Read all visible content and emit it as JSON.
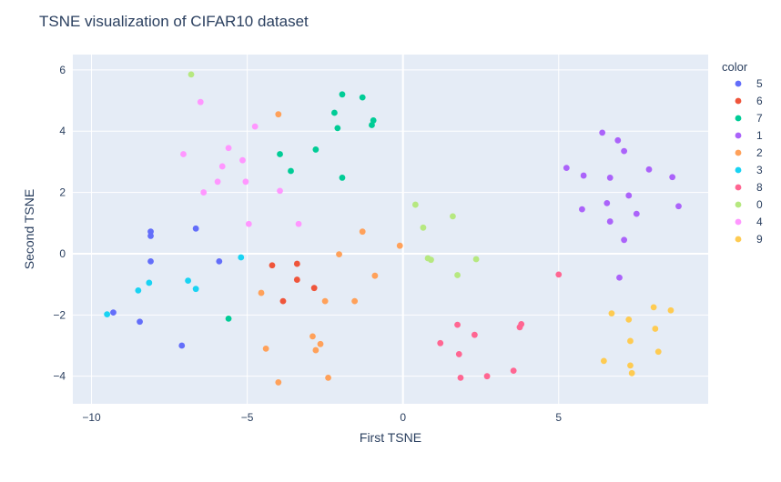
{
  "chart_data": {
    "type": "scatter",
    "title": "TSNE visualization of CIFAR10 dataset",
    "xlabel": "First TSNE",
    "ylabel": "Second TSNE",
    "xlim": [
      -10.6,
      9.8
    ],
    "ylim": [
      -4.9,
      6.5
    ],
    "xticks": [
      -10,
      -5,
      0,
      5
    ],
    "xtick_labels": [
      "−10",
      "−5",
      "0",
      "5"
    ],
    "yticks": [
      -4,
      -2,
      0,
      2,
      4,
      6
    ],
    "ytick_labels": [
      "−4",
      "−2",
      "0",
      "2",
      "4",
      "6"
    ],
    "grid": true,
    "legend_title": "color",
    "legend_position": "right",
    "series": [
      {
        "name": "5",
        "color": "#636efa",
        "points": [
          [
            -8.1,
            0.72
          ],
          [
            -8.1,
            0.58
          ],
          [
            -8.1,
            -0.25
          ],
          [
            -6.65,
            0.82
          ],
          [
            -5.9,
            -0.25
          ],
          [
            -9.3,
            -1.92
          ],
          [
            -8.45,
            -2.22
          ],
          [
            -7.1,
            -3.0
          ]
        ]
      },
      {
        "name": "6",
        "color": "#EF553B",
        "points": [
          [
            -4.2,
            -0.38
          ],
          [
            -3.4,
            -0.33
          ],
          [
            -3.4,
            -0.85
          ],
          [
            -3.85,
            -1.55
          ],
          [
            -2.85,
            -1.12
          ]
        ]
      },
      {
        "name": "7",
        "color": "#00cc96",
        "points": [
          [
            -5.6,
            -2.12
          ],
          [
            -3.95,
            3.25
          ],
          [
            -3.6,
            2.7
          ],
          [
            -2.8,
            3.4
          ],
          [
            -2.2,
            4.6
          ],
          [
            -2.1,
            4.1
          ],
          [
            -1.95,
            5.2
          ],
          [
            -1.95,
            2.48
          ],
          [
            -1.3,
            5.1
          ],
          [
            -1.0,
            4.2
          ],
          [
            -0.95,
            4.35
          ]
        ]
      },
      {
        "name": "1",
        "color": "#ab63fa",
        "points": [
          [
            5.25,
            2.8
          ],
          [
            5.8,
            2.55
          ],
          [
            6.4,
            3.95
          ],
          [
            6.9,
            3.7
          ],
          [
            7.1,
            3.35
          ],
          [
            6.65,
            2.48
          ],
          [
            7.9,
            2.75
          ],
          [
            8.65,
            2.5
          ],
          [
            8.85,
            1.55
          ],
          [
            7.25,
            1.9
          ],
          [
            6.55,
            1.65
          ],
          [
            5.75,
            1.45
          ],
          [
            6.65,
            1.05
          ],
          [
            7.5,
            1.3
          ],
          [
            7.1,
            0.45
          ],
          [
            6.95,
            -0.78
          ]
        ]
      },
      {
        "name": "2",
        "color": "#FFA15A",
        "points": [
          [
            -4.0,
            4.55
          ],
          [
            -4.55,
            -1.28
          ],
          [
            -4.4,
            -3.1
          ],
          [
            -4.0,
            -4.2
          ],
          [
            -2.9,
            -2.7
          ],
          [
            -2.8,
            -3.15
          ],
          [
            -2.65,
            -2.95
          ],
          [
            -2.5,
            -1.55
          ],
          [
            -2.4,
            -4.05
          ],
          [
            -2.05,
            -0.02
          ],
          [
            -1.55,
            -1.55
          ],
          [
            -1.3,
            0.72
          ],
          [
            -0.9,
            -0.72
          ],
          [
            -0.1,
            0.26
          ]
        ]
      },
      {
        "name": "3",
        "color": "#19d3f3",
        "points": [
          [
            -9.5,
            -1.98
          ],
          [
            -8.5,
            -1.2
          ],
          [
            -8.15,
            -0.95
          ],
          [
            -6.9,
            -0.88
          ],
          [
            -6.65,
            -1.15
          ],
          [
            -5.2,
            -0.12
          ]
        ]
      },
      {
        "name": "8",
        "color": "#FF6692",
        "points": [
          [
            5.0,
            -0.68
          ],
          [
            1.2,
            -2.92
          ],
          [
            1.75,
            -2.32
          ],
          [
            1.8,
            -3.28
          ],
          [
            1.85,
            -4.05
          ],
          [
            2.3,
            -2.65
          ],
          [
            2.7,
            -4.0
          ],
          [
            3.55,
            -3.82
          ],
          [
            3.75,
            -2.4
          ],
          [
            3.8,
            -2.3
          ]
        ]
      },
      {
        "name": "0",
        "color": "#B6E880",
        "points": [
          [
            -6.8,
            5.85
          ],
          [
            0.4,
            1.6
          ],
          [
            0.65,
            0.85
          ],
          [
            0.8,
            -0.15
          ],
          [
            0.9,
            -0.2
          ],
          [
            1.6,
            1.22
          ],
          [
            1.75,
            -0.7
          ],
          [
            2.35,
            -0.18
          ]
        ]
      },
      {
        "name": "4",
        "color": "#FF97FF",
        "points": [
          [
            -6.5,
            4.95
          ],
          [
            -7.05,
            3.25
          ],
          [
            -5.6,
            3.45
          ],
          [
            -4.75,
            4.15
          ],
          [
            -5.8,
            2.85
          ],
          [
            -5.15,
            3.05
          ],
          [
            -5.95,
            2.35
          ],
          [
            -5.05,
            2.35
          ],
          [
            -6.4,
            2.0
          ],
          [
            -3.95,
            2.05
          ],
          [
            -4.95,
            0.97
          ],
          [
            -3.35,
            0.97
          ]
        ]
      },
      {
        "name": "9",
        "color": "#FECB52",
        "points": [
          [
            8.05,
            -1.75
          ],
          [
            8.6,
            -1.85
          ],
          [
            6.7,
            -1.95
          ],
          [
            7.25,
            -2.15
          ],
          [
            8.1,
            -2.45
          ],
          [
            7.3,
            -2.85
          ],
          [
            8.2,
            -3.2
          ],
          [
            6.45,
            -3.5
          ],
          [
            7.3,
            -3.65
          ],
          [
            7.35,
            -3.9
          ]
        ]
      }
    ]
  }
}
